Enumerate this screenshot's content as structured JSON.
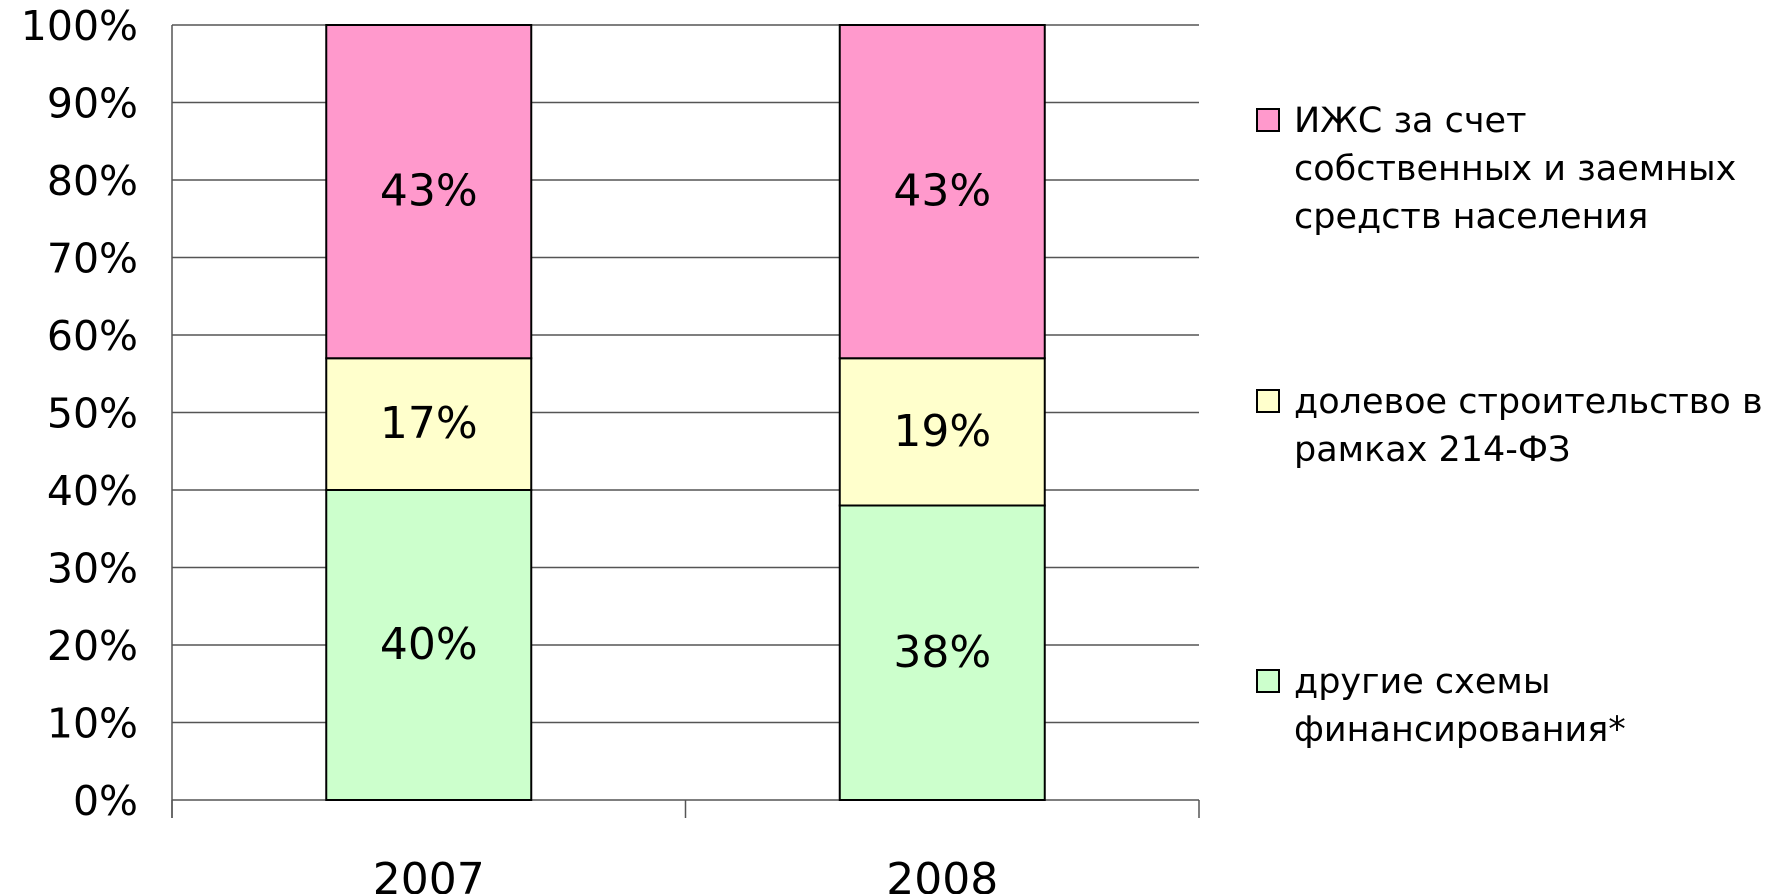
{
  "chart_data": {
    "type": "stacked_bar",
    "categories": [
      "2007",
      "2008"
    ],
    "series": [
      {
        "name": "другие схемы финансирования*",
        "color": "#ccffcc",
        "values": [
          40,
          38
        ],
        "value_labels": [
          "40%",
          "38%"
        ]
      },
      {
        "name": "долевое строительство в рамках 214-ФЗ",
        "color": "#ffffcc",
        "values": [
          17,
          19
        ],
        "value_labels": [
          "17%",
          "19%"
        ]
      },
      {
        "name": "ИЖС за счет собственных и заемных средств населения",
        "color": "#ff99cc",
        "values": [
          43,
          43
        ],
        "value_labels": [
          "43%",
          "43%"
        ]
      }
    ],
    "ylim": [
      0,
      100
    ],
    "yticks": [
      {
        "value": 0,
        "label": "0%"
      },
      {
        "value": 10,
        "label": "10%"
      },
      {
        "value": 20,
        "label": "20%"
      },
      {
        "value": 30,
        "label": "30%"
      },
      {
        "value": 40,
        "label": "40%"
      },
      {
        "value": 50,
        "label": "50%"
      },
      {
        "value": 60,
        "label": "60%"
      },
      {
        "value": 70,
        "label": "70%"
      },
      {
        "value": 80,
        "label": "80%"
      },
      {
        "value": 90,
        "label": "90%"
      },
      {
        "value": 100,
        "label": "100%"
      }
    ],
    "grid": true,
    "legend": "right"
  }
}
